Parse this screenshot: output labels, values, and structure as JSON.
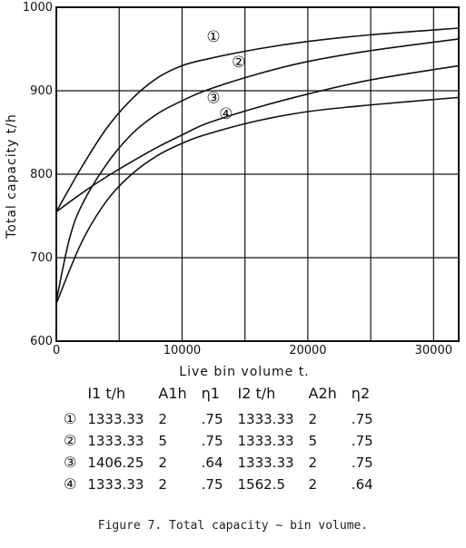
{
  "chart_data": {
    "type": "line",
    "xlabel": "Live bin volume t.",
    "ylabel": "Total capacity t/h",
    "xlim": [
      0,
      32000
    ],
    "ylim": [
      600,
      1000
    ],
    "x_ticks": [
      0,
      10000,
      20000,
      30000
    ],
    "x_tick_labels": [
      "0",
      "10000",
      "20000",
      "30000"
    ],
    "y_ticks": [
      600,
      700,
      800,
      900,
      1000
    ],
    "y_tick_labels": [
      "600",
      "700",
      "800",
      "900",
      "1000"
    ],
    "grid": true,
    "series": [
      {
        "name": "①",
        "x": [
          0,
          2000,
          4000,
          6000,
          8000,
          10000,
          12000,
          16000,
          20000,
          25000,
          32000
        ],
        "y": [
          755,
          808,
          855,
          890,
          915,
          930,
          938,
          950,
          959,
          967,
          975
        ]
      },
      {
        "name": "②",
        "x": [
          0,
          2000,
          4000,
          6000,
          8000,
          10000,
          12000,
          16000,
          20000,
          25000,
          32000
        ],
        "y": [
          755,
          777,
          797,
          815,
          832,
          847,
          861,
          880,
          896,
          913,
          930
        ]
      },
      {
        "name": "③",
        "x": [
          0,
          2000,
          4000,
          6000,
          8000,
          10000,
          12000,
          16000,
          20000,
          25000,
          32000
        ],
        "y": [
          645,
          718,
          768,
          800,
          822,
          837,
          848,
          864,
          875,
          883,
          892
        ]
      },
      {
        "name": "④",
        "x": [
          0,
          1000,
          2000,
          4000,
          6000,
          8000,
          10000,
          12000,
          16000,
          20000,
          25000,
          32000
        ],
        "y": [
          648,
          720,
          762,
          812,
          848,
          872,
          888,
          901,
          920,
          935,
          948,
          962
        ]
      }
    ]
  },
  "labels": {
    "series_markers": [
      "①",
      "②",
      "③",
      "④"
    ]
  },
  "table": {
    "headers": [
      "I1 t/h",
      "A1h",
      "η1",
      "I2 t/h",
      "A2h",
      "η2"
    ],
    "rows": [
      {
        "marker": "①",
        "cells": [
          "1333.33",
          "2",
          ".75",
          "1333.33",
          "2",
          ".75"
        ]
      },
      {
        "marker": "②",
        "cells": [
          "1333.33",
          "5",
          ".75",
          "1333.33",
          "5",
          ".75"
        ]
      },
      {
        "marker": "③",
        "cells": [
          "1406.25",
          "2",
          ".64",
          "1333.33",
          "2",
          ".75"
        ]
      },
      {
        "marker": "④",
        "cells": [
          "1333.33",
          "2",
          ".75",
          "1562.5",
          "2",
          ".64"
        ]
      }
    ]
  },
  "caption": "Figure 7.  Total capacity ~ bin volume."
}
